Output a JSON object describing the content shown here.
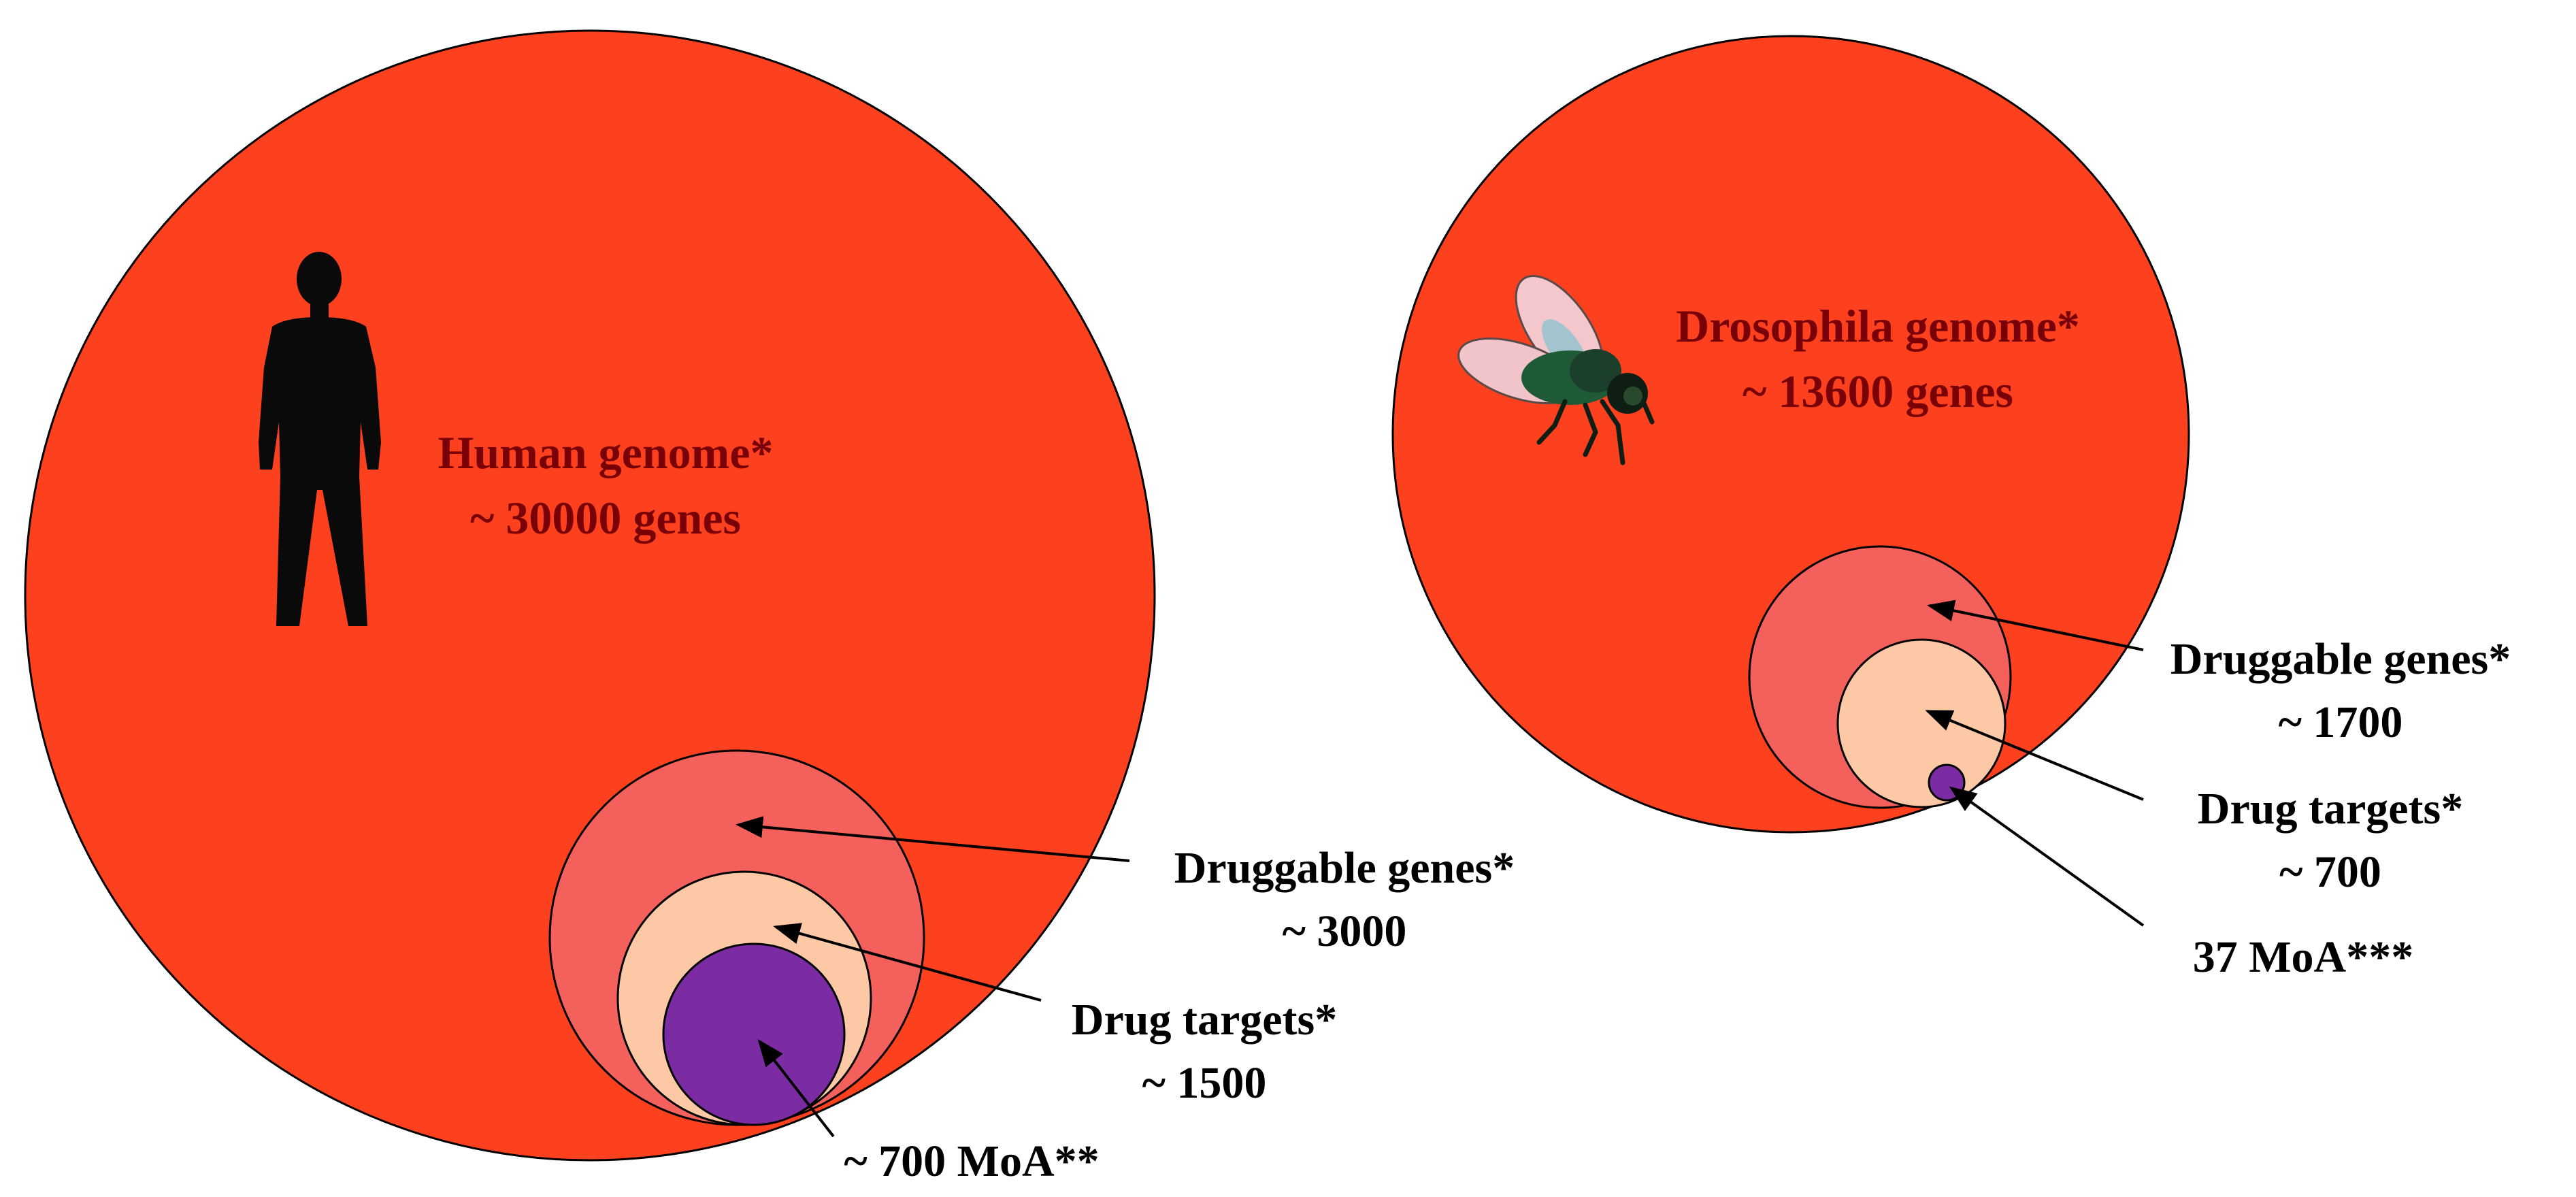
{
  "colors": {
    "genome": "#fd401d",
    "druggable": "#f4615c",
    "targets": "#fdc8a6",
    "moa": "#7b2ca2",
    "outline": "#000000",
    "genome_label": "#7a0008",
    "callout_label": "#000000"
  },
  "human": {
    "icon": "human-silhouette-icon",
    "genome_label": "Human genome*",
    "genome_count": "~ 30000 genes",
    "druggable_label": "Druggable genes*",
    "druggable_count": "~ 3000",
    "targets_label": "Drug targets*",
    "targets_count": "~ 1500",
    "moa_label": "~ 700 MoA**"
  },
  "fly": {
    "icon": "fruit-fly-icon",
    "genome_label": "Drosophila genome*",
    "genome_count": "~ 13600 genes",
    "druggable_label": "Druggable genes*",
    "druggable_count": "~ 1700",
    "targets_label": "Drug targets*",
    "targets_count": "~ 700",
    "moa_label": "37 MoA***"
  }
}
